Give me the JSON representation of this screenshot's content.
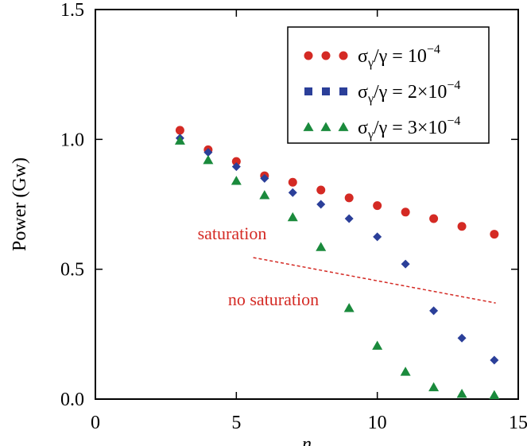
{
  "chart_data": {
    "type": "scatter",
    "xlabel": "n",
    "ylabel": "Power (Gw)",
    "xlim": [
      0,
      15
    ],
    "ylim": [
      0,
      1.5
    ],
    "xticks": [
      0,
      5,
      10,
      15
    ],
    "xtick_labels": [
      "0",
      "5",
      "10",
      "15"
    ],
    "yticks": [
      0,
      0.5,
      1.0,
      1.5
    ],
    "ytick_labels": [
      "0.0",
      "0.5",
      "1.0",
      "1.5"
    ],
    "grid": false,
    "legend_position": "top-right",
    "series": [
      {
        "marker": "circle",
        "color": "#d42a24",
        "legend_parts": [
          "σ",
          "γ",
          "/γ = 10",
          "−4"
        ],
        "x": [
          3,
          4,
          5,
          6,
          7,
          8,
          9,
          10,
          11,
          12,
          13,
          14.15
        ],
        "y": [
          1.035,
          0.96,
          0.915,
          0.86,
          0.835,
          0.805,
          0.775,
          0.745,
          0.72,
          0.695,
          0.665,
          0.635
        ]
      },
      {
        "marker": "diamond",
        "color": "#2b3f99",
        "legend_parts": [
          "σ",
          "γ",
          "/γ = 2×10",
          "−4"
        ],
        "x": [
          3,
          4,
          5,
          6,
          7,
          8,
          9,
          10,
          11,
          12,
          13,
          14.15
        ],
        "y": [
          1.005,
          0.95,
          0.895,
          0.85,
          0.795,
          0.75,
          0.695,
          0.625,
          0.52,
          0.34,
          0.235,
          0.15
        ]
      },
      {
        "marker": "triangle",
        "color": "#1a8a3c",
        "legend_parts": [
          "σ",
          "γ",
          "/γ = 3×10",
          "−4"
        ],
        "x": [
          3,
          4,
          5,
          6,
          7,
          8,
          9,
          10,
          11,
          12,
          13,
          14.15
        ],
        "y": [
          0.995,
          0.92,
          0.84,
          0.785,
          0.7,
          0.585,
          0.35,
          0.205,
          0.105,
          0.045,
          0.02,
          0.015
        ]
      }
    ],
    "annotations": [
      {
        "text": "saturation",
        "color": "#d42a24"
      },
      {
        "text": "no saturation",
        "color": "#d42a24"
      }
    ],
    "divider_line": {
      "x": [
        5.6,
        14.2
      ],
      "y": [
        0.545,
        0.37
      ],
      "color": "#d42a24",
      "style": "dashed"
    }
  }
}
